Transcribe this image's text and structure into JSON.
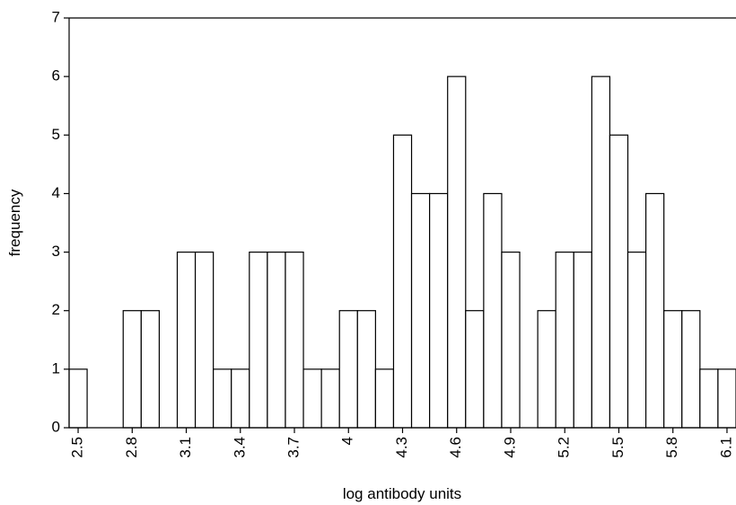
{
  "chart_data": {
    "type": "histogram",
    "x_label": "log antibody units",
    "y_label": "frequency",
    "bins": [
      2.45,
      2.55,
      2.65,
      2.75,
      2.85,
      2.95,
      3.05,
      3.15,
      3.25,
      3.35,
      3.45,
      3.55,
      3.65,
      3.75,
      3.85,
      3.95,
      4.05,
      4.15,
      4.25,
      4.35,
      4.45,
      4.55,
      4.65,
      4.75,
      4.85,
      4.95,
      5.05,
      5.15,
      5.25,
      5.35,
      5.45,
      5.55,
      5.65,
      5.75,
      5.85,
      5.95,
      6.05,
      6.15
    ],
    "counts": [
      1,
      0,
      0,
      2,
      2,
      0,
      3,
      3,
      1,
      1,
      3,
      3,
      3,
      1,
      1,
      2,
      2,
      1,
      5,
      4,
      4,
      6,
      2,
      4,
      3,
      0,
      2,
      3,
      3,
      6,
      5,
      3,
      4,
      2,
      2,
      1,
      1
    ],
    "color": "#ffffff",
    "xlim": [
      2.45,
      6.15
    ],
    "xticks": [
      2.5,
      2.8,
      3.1,
      3.4,
      3.7,
      4,
      4.3,
      4.6,
      4.9,
      5.2,
      5.5,
      5.8,
      6.1
    ],
    "ylim": [
      0,
      7
    ],
    "yticks": [
      0,
      1,
      2,
      3,
      4,
      5,
      6,
      7
    ]
  }
}
